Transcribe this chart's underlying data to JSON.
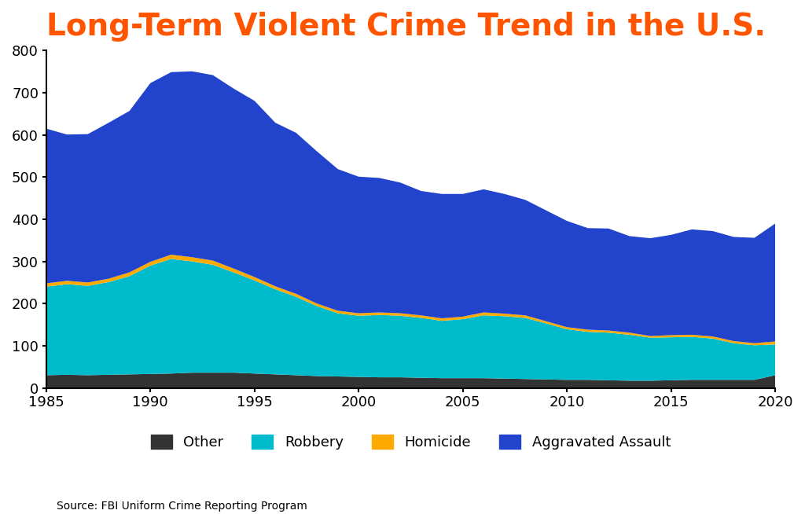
{
  "title": "Long-Term Violent Crime Trend in the U.S.",
  "title_color": "#FF5500",
  "title_fontsize": 28,
  "source_text": "Source: FBI Uniform Crime Reporting Program",
  "years": [
    1985,
    1986,
    1987,
    1988,
    1989,
    1990,
    1991,
    1992,
    1993,
    1994,
    1995,
    1996,
    1997,
    1998,
    1999,
    2000,
    2001,
    2002,
    2003,
    2004,
    2005,
    2006,
    2007,
    2008,
    2009,
    2010,
    2011,
    2012,
    2013,
    2014,
    2015,
    2016,
    2017,
    2018,
    2019,
    2020
  ],
  "other": [
    30,
    31,
    30,
    31,
    32,
    33,
    34,
    36,
    36,
    36,
    34,
    32,
    30,
    28,
    27,
    26,
    25,
    25,
    24,
    23,
    23,
    23,
    22,
    21,
    20,
    19,
    19,
    18,
    17,
    17,
    18,
    19,
    19,
    19,
    19,
    30
  ],
  "robbery": [
    210,
    215,
    212,
    220,
    233,
    257,
    272,
    264,
    256,
    238,
    221,
    202,
    186,
    166,
    150,
    145,
    148,
    146,
    142,
    136,
    140,
    149,
    148,
    145,
    133,
    120,
    114,
    113,
    109,
    102,
    102,
    102,
    98,
    87,
    82,
    73
  ],
  "homicide": [
    8,
    8,
    8,
    8,
    9,
    9,
    10,
    10,
    10,
    9,
    8,
    7,
    7,
    6,
    6,
    6,
    6,
    6,
    6,
    6,
    6,
    7,
    6,
    6,
    5,
    5,
    5,
    5,
    5,
    4,
    5,
    5,
    5,
    5,
    5,
    7
  ],
  "aggravated_assault": [
    367,
    347,
    352,
    370,
    383,
    424,
    433,
    441,
    440,
    427,
    418,
    388,
    382,
    361,
    336,
    324,
    319,
    310,
    295,
    295,
    291,
    292,
    284,
    274,
    263,
    252,
    241,
    242,
    229,
    232,
    238,
    250,
    250,
    247,
    250,
    280
  ],
  "colors": {
    "other": "#333333",
    "robbery": "#00BBCC",
    "homicide": "#FFAA00",
    "aggravated_assault": "#2244CC"
  },
  "ylim": [
    0,
    800
  ],
  "yticks": [
    0,
    100,
    200,
    300,
    400,
    500,
    600,
    700,
    800
  ],
  "xlim": [
    1985,
    2020
  ],
  "xticks": [
    1985,
    1990,
    1995,
    2000,
    2005,
    2010,
    2015,
    2020
  ],
  "background_color": "#ffffff",
  "legend_labels": [
    "Other",
    "Robbery",
    "Homicide",
    "Aggravated Assault"
  ]
}
